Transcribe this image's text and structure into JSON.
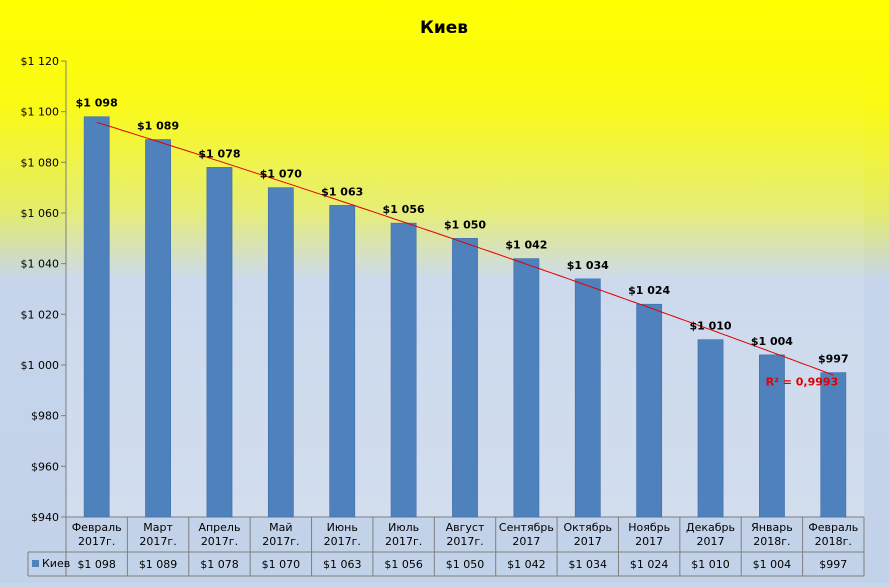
{
  "chart_data": {
    "type": "bar",
    "title": "Киев",
    "categories": [
      [
        "Февраль",
        "2017г."
      ],
      [
        "Март",
        "2017г."
      ],
      [
        "Апрель",
        "2017г."
      ],
      [
        "Май",
        "2017г."
      ],
      [
        "Июнь",
        "2017г."
      ],
      [
        "Июль",
        "2017г."
      ],
      [
        "Август",
        "2017г."
      ],
      [
        "Сентябрь",
        "2017"
      ],
      [
        "Октябрь",
        "2017"
      ],
      [
        "Ноябрь",
        "2017"
      ],
      [
        "Декабрь",
        "2017"
      ],
      [
        "Январь",
        "2018г."
      ],
      [
        "Февраль",
        "2018г."
      ]
    ],
    "series": [
      {
        "name": "Киев",
        "color": "#4f81bd",
        "values": [
          1098,
          1089,
          1078,
          1070,
          1063,
          1056,
          1050,
          1042,
          1034,
          1024,
          1010,
          1004,
          997
        ],
        "data_labels": [
          "$1 098",
          "$1 089",
          "$1 078",
          "$1 070",
          "$1 063",
          "$1 056",
          "$1 050",
          "$1 042",
          "$1 034",
          "$1 024",
          "$1 010",
          "$1 004",
          "$997"
        ]
      }
    ],
    "ylim": [
      940,
      1120
    ],
    "ytick_values": [
      940,
      960,
      980,
      1000,
      1020,
      1040,
      1060,
      1080,
      1100,
      1120
    ],
    "ytick_labels": [
      "$940",
      "$960",
      "$980",
      "$1 000",
      "$1 020",
      "$1 040",
      "$1 060",
      "$1 080",
      "$1 100",
      "$1 120"
    ],
    "trendline": {
      "type": "polynomial",
      "color": "#e00000",
      "r2_label": "R² = 0,9993"
    },
    "data_table": true,
    "grid": false,
    "background": {
      "top_color": "#ffff00",
      "bottom_color": "#c6d5eb"
    }
  }
}
